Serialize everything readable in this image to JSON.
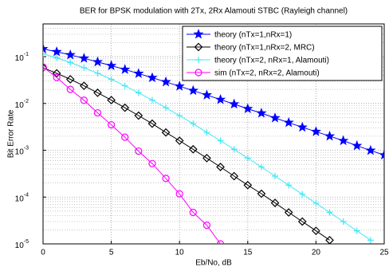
{
  "chart_data": {
    "type": "line",
    "title": "BER for BPSK modulation with 2Tx, 2Rx Alamouti STBC (Rayleigh channel)",
    "xlabel": "Eb/No, dB",
    "ylabel": "Bit Error Rate",
    "xlim": [
      0,
      25
    ],
    "xticks": [
      0,
      5,
      10,
      15,
      20,
      25
    ],
    "ylim": [
      1e-05,
      0.5
    ],
    "log_y": true,
    "grid": true,
    "legend": "northeast",
    "yticks": [
      {
        "value": 1e-05,
        "label": "10-5"
      },
      {
        "value": 0.0001,
        "label": "10-4"
      },
      {
        "value": 0.001,
        "label": "10-3"
      },
      {
        "value": 0.01,
        "label": "10-2"
      },
      {
        "value": 0.1,
        "label": "10-1"
      }
    ],
    "series": [
      {
        "name": "theory (nTx=1,nRx=1)",
        "color": "#0000ff",
        "marker": "pentagram",
        "x": [
          0,
          1,
          2,
          3,
          4,
          5,
          6,
          7,
          8,
          9,
          10,
          11,
          12,
          13,
          14,
          15,
          16,
          17,
          18,
          19,
          20,
          21,
          22,
          23,
          24,
          25
        ],
        "values": [
          0.146,
          0.127,
          0.109,
          0.092,
          0.077,
          0.064,
          0.053,
          0.0435,
          0.0355,
          0.0288,
          0.0233,
          0.0188,
          0.0151,
          0.0121,
          0.0097,
          0.0077,
          0.0062,
          0.0049,
          0.0039,
          0.0031,
          0.0025,
          0.002,
          0.0016,
          0.00125,
          0.00099,
          0.00079
        ]
      },
      {
        "name": "theory (nTx=1,nRx=2, MRC)",
        "color": "#000000",
        "marker": "diamond",
        "x": [
          0,
          1,
          2,
          3,
          4,
          5,
          6,
          7,
          8,
          9,
          10,
          11,
          12,
          13,
          14,
          15,
          16,
          17,
          18,
          19,
          20,
          21
        ],
        "values": [
          0.058,
          0.0441,
          0.0328,
          0.0238,
          0.0169,
          0.0118,
          0.0081,
          0.0055,
          0.0037,
          0.0024,
          0.0016,
          0.00105,
          0.00068,
          0.00044,
          0.00028,
          0.00018,
          0.000118,
          7.5e-05,
          4.7e-05,
          3e-05,
          1.9e-05,
          1.2e-05
        ]
      },
      {
        "name": "theory (nTx=2, nRx=1, Alamouti)",
        "color": "#40e8f8",
        "marker": "plus",
        "x": [
          0,
          1,
          2,
          3,
          4,
          5,
          6,
          7,
          8,
          9,
          10,
          11,
          12,
          13,
          14,
          15,
          16,
          17,
          18,
          19,
          20,
          21,
          22,
          23,
          24
        ],
        "values": [
          0.115,
          0.094,
          0.075,
          0.058,
          0.0441,
          0.0328,
          0.0238,
          0.0169,
          0.0118,
          0.0081,
          0.0055,
          0.0037,
          0.0024,
          0.0016,
          0.00105,
          0.00068,
          0.00044,
          0.00028,
          0.00018,
          0.000115,
          7.4e-05,
          4.7e-05,
          3e-05,
          1.9e-05,
          1.2e-05
        ]
      },
      {
        "name": "sim (nTx=2, nRx=2, Alamouti)",
        "color": "#ff00ff",
        "marker": "circle",
        "x": [
          0,
          1,
          2,
          3,
          4,
          5,
          6,
          7,
          8,
          9,
          10,
          11,
          12,
          13
        ],
        "values": [
          0.06,
          0.036,
          0.02,
          0.0117,
          0.0063,
          0.0035,
          0.0019,
          0.00096,
          0.00052,
          0.00025,
          0.000117,
          4.7e-05,
          2.5e-05,
          1e-05
        ]
      }
    ]
  }
}
